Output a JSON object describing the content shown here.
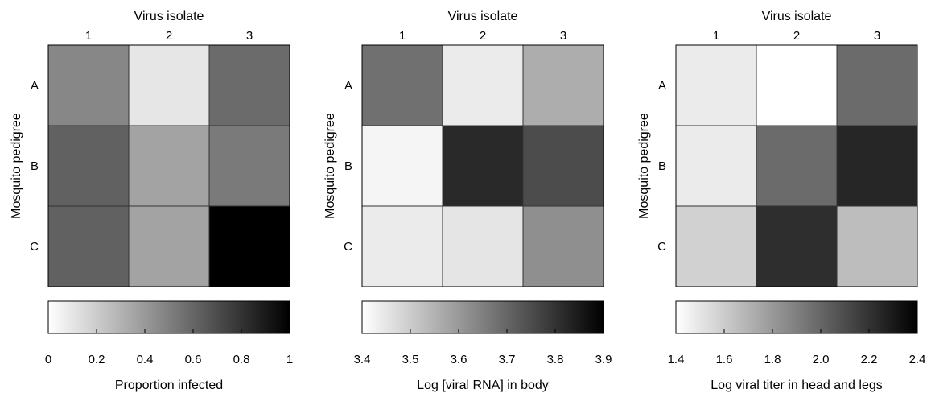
{
  "chart_data": [
    {
      "type": "heatmap",
      "xlabel": "Virus isolate",
      "ylabel": "Mosquito pedigree",
      "x_categories": [
        "1",
        "2",
        "3"
      ],
      "y_categories": [
        "A",
        "B",
        "C"
      ],
      "values": [
        [
          0.47,
          0.1,
          0.58
        ],
        [
          0.62,
          0.36,
          0.52
        ],
        [
          0.62,
          0.36,
          1.0
        ]
      ],
      "colorbar": {
        "label": "Proportion infected",
        "min": 0,
        "max": 1,
        "ticks": [
          "0",
          "0.2",
          "0.4",
          "0.6",
          "0.8",
          "1"
        ],
        "tick_values": [
          0,
          0.2,
          0.4,
          0.6,
          0.8,
          1
        ]
      }
    },
    {
      "type": "heatmap",
      "xlabel": "Virus isolate",
      "ylabel": "Mosquito pedigree",
      "x_categories": [
        "1",
        "2",
        "3"
      ],
      "y_categories": [
        "A",
        "B",
        "C"
      ],
      "values": [
        [
          3.68,
          3.44,
          3.56
        ],
        [
          3.42,
          3.82,
          3.75
        ],
        [
          3.44,
          3.45,
          3.62
        ]
      ],
      "colorbar": {
        "label": "Log [viral RNA] in body",
        "min": 3.4,
        "max": 3.9,
        "ticks": [
          "3.4",
          "3.5",
          "3.6",
          "3.7",
          "3.8",
          "3.9"
        ],
        "tick_values": [
          3.4,
          3.5,
          3.6,
          3.7,
          3.8,
          3.9
        ]
      }
    },
    {
      "type": "heatmap",
      "xlabel": "Virus isolate",
      "ylabel": "Mosquito pedigree",
      "x_categories": [
        "1",
        "2",
        "3"
      ],
      "y_categories": [
        "A",
        "B",
        "C"
      ],
      "values": [
        [
          1.48,
          1.4,
          1.98
        ],
        [
          1.48,
          1.98,
          2.25
        ],
        [
          1.58,
          2.22,
          1.66
        ]
      ],
      "colorbar": {
        "label": "Log viral titer in head and legs",
        "min": 1.4,
        "max": 2.4,
        "ticks": [
          "1.4",
          "1.6",
          "1.8",
          "2.0",
          "2.2",
          "2.4"
        ],
        "tick_values": [
          1.4,
          1.6,
          1.8,
          2.0,
          2.2,
          2.4
        ]
      }
    }
  ]
}
